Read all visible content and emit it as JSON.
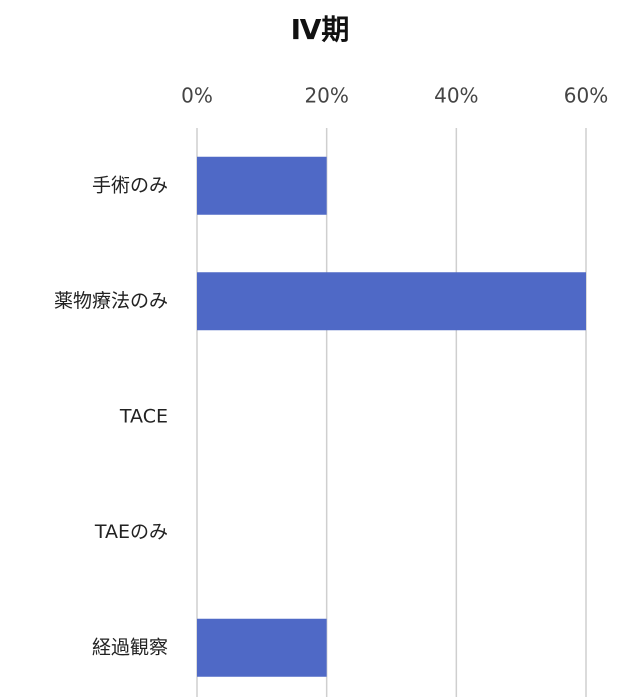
{
  "chart_data": {
    "type": "hbar",
    "title": "Ⅳ期",
    "categories": [
      "手術のみ",
      "薬物療法のみ",
      "TACE",
      "TAEのみ",
      "経過観察"
    ],
    "values": [
      20,
      60,
      0,
      0,
      20
    ],
    "color": "#4f69c6",
    "xlim": [
      0,
      60
    ],
    "xticks": [
      {
        "value": 0,
        "label": "0%"
      },
      {
        "value": 20,
        "label": "20%"
      },
      {
        "value": 40,
        "label": "40%"
      },
      {
        "value": 60,
        "label": "60%"
      }
    ],
    "grid": true
  }
}
